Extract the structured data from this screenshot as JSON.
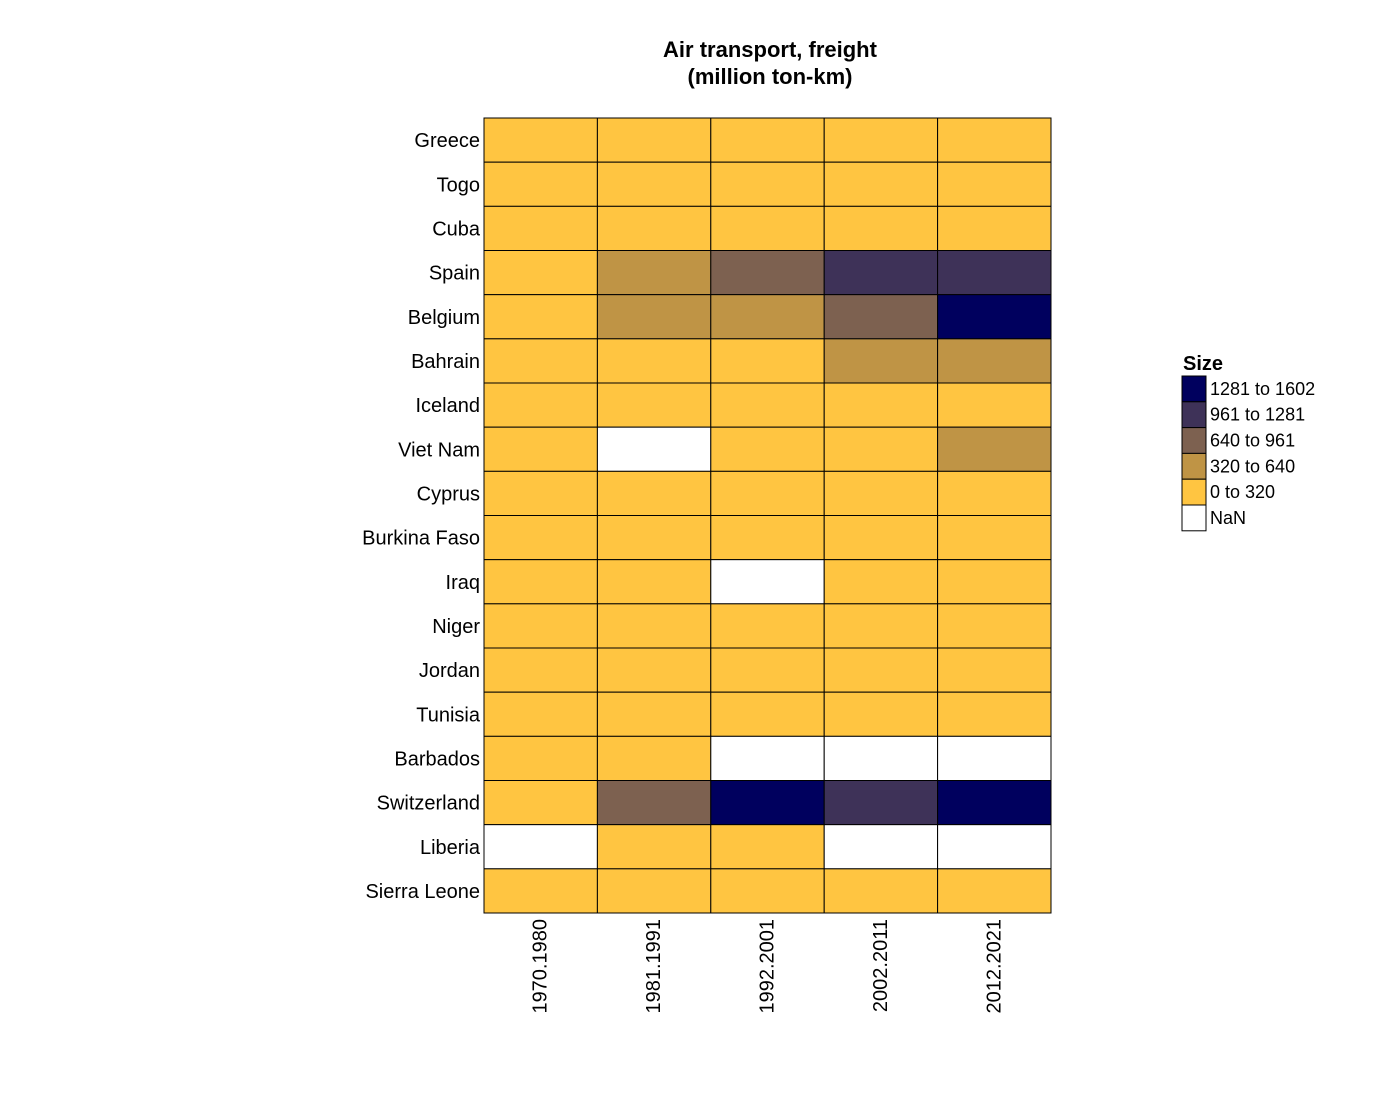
{
  "chart_data": {
    "type": "heatmap",
    "title": [
      "Air transport, freight",
      "(million ton-km)"
    ],
    "rows": [
      "Greece",
      "Togo",
      "Cuba",
      "Spain",
      "Belgium",
      "Bahrain",
      "Iceland",
      "Viet Nam",
      "Cyprus",
      "Burkina Faso",
      "Iraq",
      "Niger",
      "Jordan",
      "Tunisia",
      "Barbados",
      "Switzerland",
      "Liberia",
      "Sierra Leone"
    ],
    "columns": [
      "1970.1980",
      "1981.1991",
      "1992.2001",
      "2002.2011",
      "2012.2021"
    ],
    "cells": [
      [
        0,
        0,
        0,
        0,
        0
      ],
      [
        0,
        0,
        0,
        0,
        0
      ],
      [
        0,
        0,
        0,
        0,
        0
      ],
      [
        0,
        1,
        2,
        3,
        3
      ],
      [
        0,
        1,
        1,
        2,
        4
      ],
      [
        0,
        0,
        0,
        1,
        1
      ],
      [
        0,
        0,
        0,
        0,
        0
      ],
      [
        0,
        -1,
        0,
        0,
        1
      ],
      [
        0,
        0,
        0,
        0,
        0
      ],
      [
        0,
        0,
        0,
        0,
        0
      ],
      [
        0,
        0,
        -1,
        0,
        0
      ],
      [
        0,
        0,
        0,
        0,
        0
      ],
      [
        0,
        0,
        0,
        0,
        0
      ],
      [
        0,
        0,
        0,
        0,
        0
      ],
      [
        0,
        0,
        -1,
        -1,
        -1
      ],
      [
        0,
        2,
        4,
        3,
        4
      ],
      [
        -1,
        0,
        0,
        -1,
        -1
      ],
      [
        0,
        0,
        0,
        0,
        0
      ]
    ],
    "legend": {
      "title": "Size",
      "bins": [
        {
          "label": "1281  to  1602",
          "color": "#00005e"
        },
        {
          "label": "961  to  1281",
          "color": "#3e3258"
        },
        {
          "label": "640  to  961",
          "color": "#7d6150"
        },
        {
          "label": "320  to  640",
          "color": "#bf9445"
        },
        {
          "label": "0  to  320",
          "color": "#ffc541"
        },
        {
          "label": "NaN",
          "color": "#ffffff"
        }
      ]
    },
    "bin_colors": [
      "#ffc541",
      "#bf9445",
      "#7d6150",
      "#3e3258",
      "#00005e"
    ],
    "nan_color": "#ffffff"
  }
}
